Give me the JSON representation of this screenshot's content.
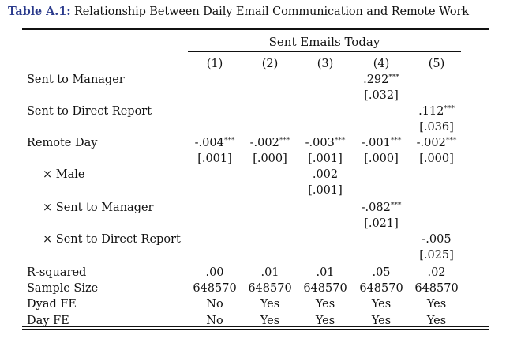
{
  "caption": {
    "label": "Table A.1:",
    "text": "Relationship Between Daily Email Communication and Remote Work"
  },
  "header": {
    "span": "Sent Emails Today",
    "columns": [
      "(1)",
      "(2)",
      "(3)",
      "(4)",
      "(5)"
    ]
  },
  "rows": [
    {
      "key": "sent_manager",
      "label": "Sent to Manager",
      "coef": [
        "",
        "",
        "",
        ".292",
        ""
      ],
      "stars": [
        "",
        "",
        "",
        "***",
        ""
      ],
      "se": [
        "",
        "",
        "",
        "[.032]",
        ""
      ]
    },
    {
      "key": "sent_direct",
      "label": "Sent to Direct Report",
      "coef": [
        "",
        "",
        "",
        "",
        ".112"
      ],
      "stars": [
        "",
        "",
        "",
        "",
        "***"
      ],
      "se": [
        "",
        "",
        "",
        "",
        "[.036]"
      ]
    },
    {
      "key": "remote_day",
      "label": "Remote Day",
      "coef": [
        "-.004",
        "-.002",
        "-.003",
        "-.001",
        "-.002"
      ],
      "stars": [
        "***",
        "***",
        "***",
        "***",
        "***"
      ],
      "se": [
        "[.001]",
        "[.000]",
        "[.001]",
        "[.000]",
        "[.000]"
      ]
    },
    {
      "key": "x_male",
      "label": "× Male",
      "coef": [
        "",
        "",
        ".002",
        "",
        ""
      ],
      "stars": [
        "",
        "",
        "",
        "",
        ""
      ],
      "se": [
        "",
        "",
        "[.001]",
        "",
        ""
      ]
    },
    {
      "key": "x_sent_manager",
      "label": "× Sent to Manager",
      "coef": [
        "",
        "",
        "",
        "-.082",
        ""
      ],
      "stars": [
        "",
        "",
        "",
        "***",
        ""
      ],
      "se": [
        "",
        "",
        "",
        "[.021]",
        ""
      ]
    },
    {
      "key": "x_sent_direct",
      "label": "× Sent to Direct Report",
      "coef": [
        "",
        "",
        "",
        "",
        "-.005"
      ],
      "stars": [
        "",
        "",
        "",
        "",
        ""
      ],
      "se": [
        "",
        "",
        "",
        "",
        "[.025]"
      ]
    }
  ],
  "stats": [
    {
      "key": "rsq",
      "label": "R-squared",
      "values": [
        ".00",
        ".01",
        ".01",
        ".05",
        ".02"
      ]
    },
    {
      "key": "n",
      "label": "Sample Size",
      "values": [
        "648570",
        "648570",
        "648570",
        "648570",
        "648570"
      ]
    },
    {
      "key": "dyad",
      "label": "Dyad FE",
      "values": [
        "No",
        "Yes",
        "Yes",
        "Yes",
        "Yes"
      ]
    },
    {
      "key": "day",
      "label": "Day FE",
      "values": [
        "No",
        "Yes",
        "Yes",
        "Yes",
        "Yes"
      ]
    }
  ]
}
